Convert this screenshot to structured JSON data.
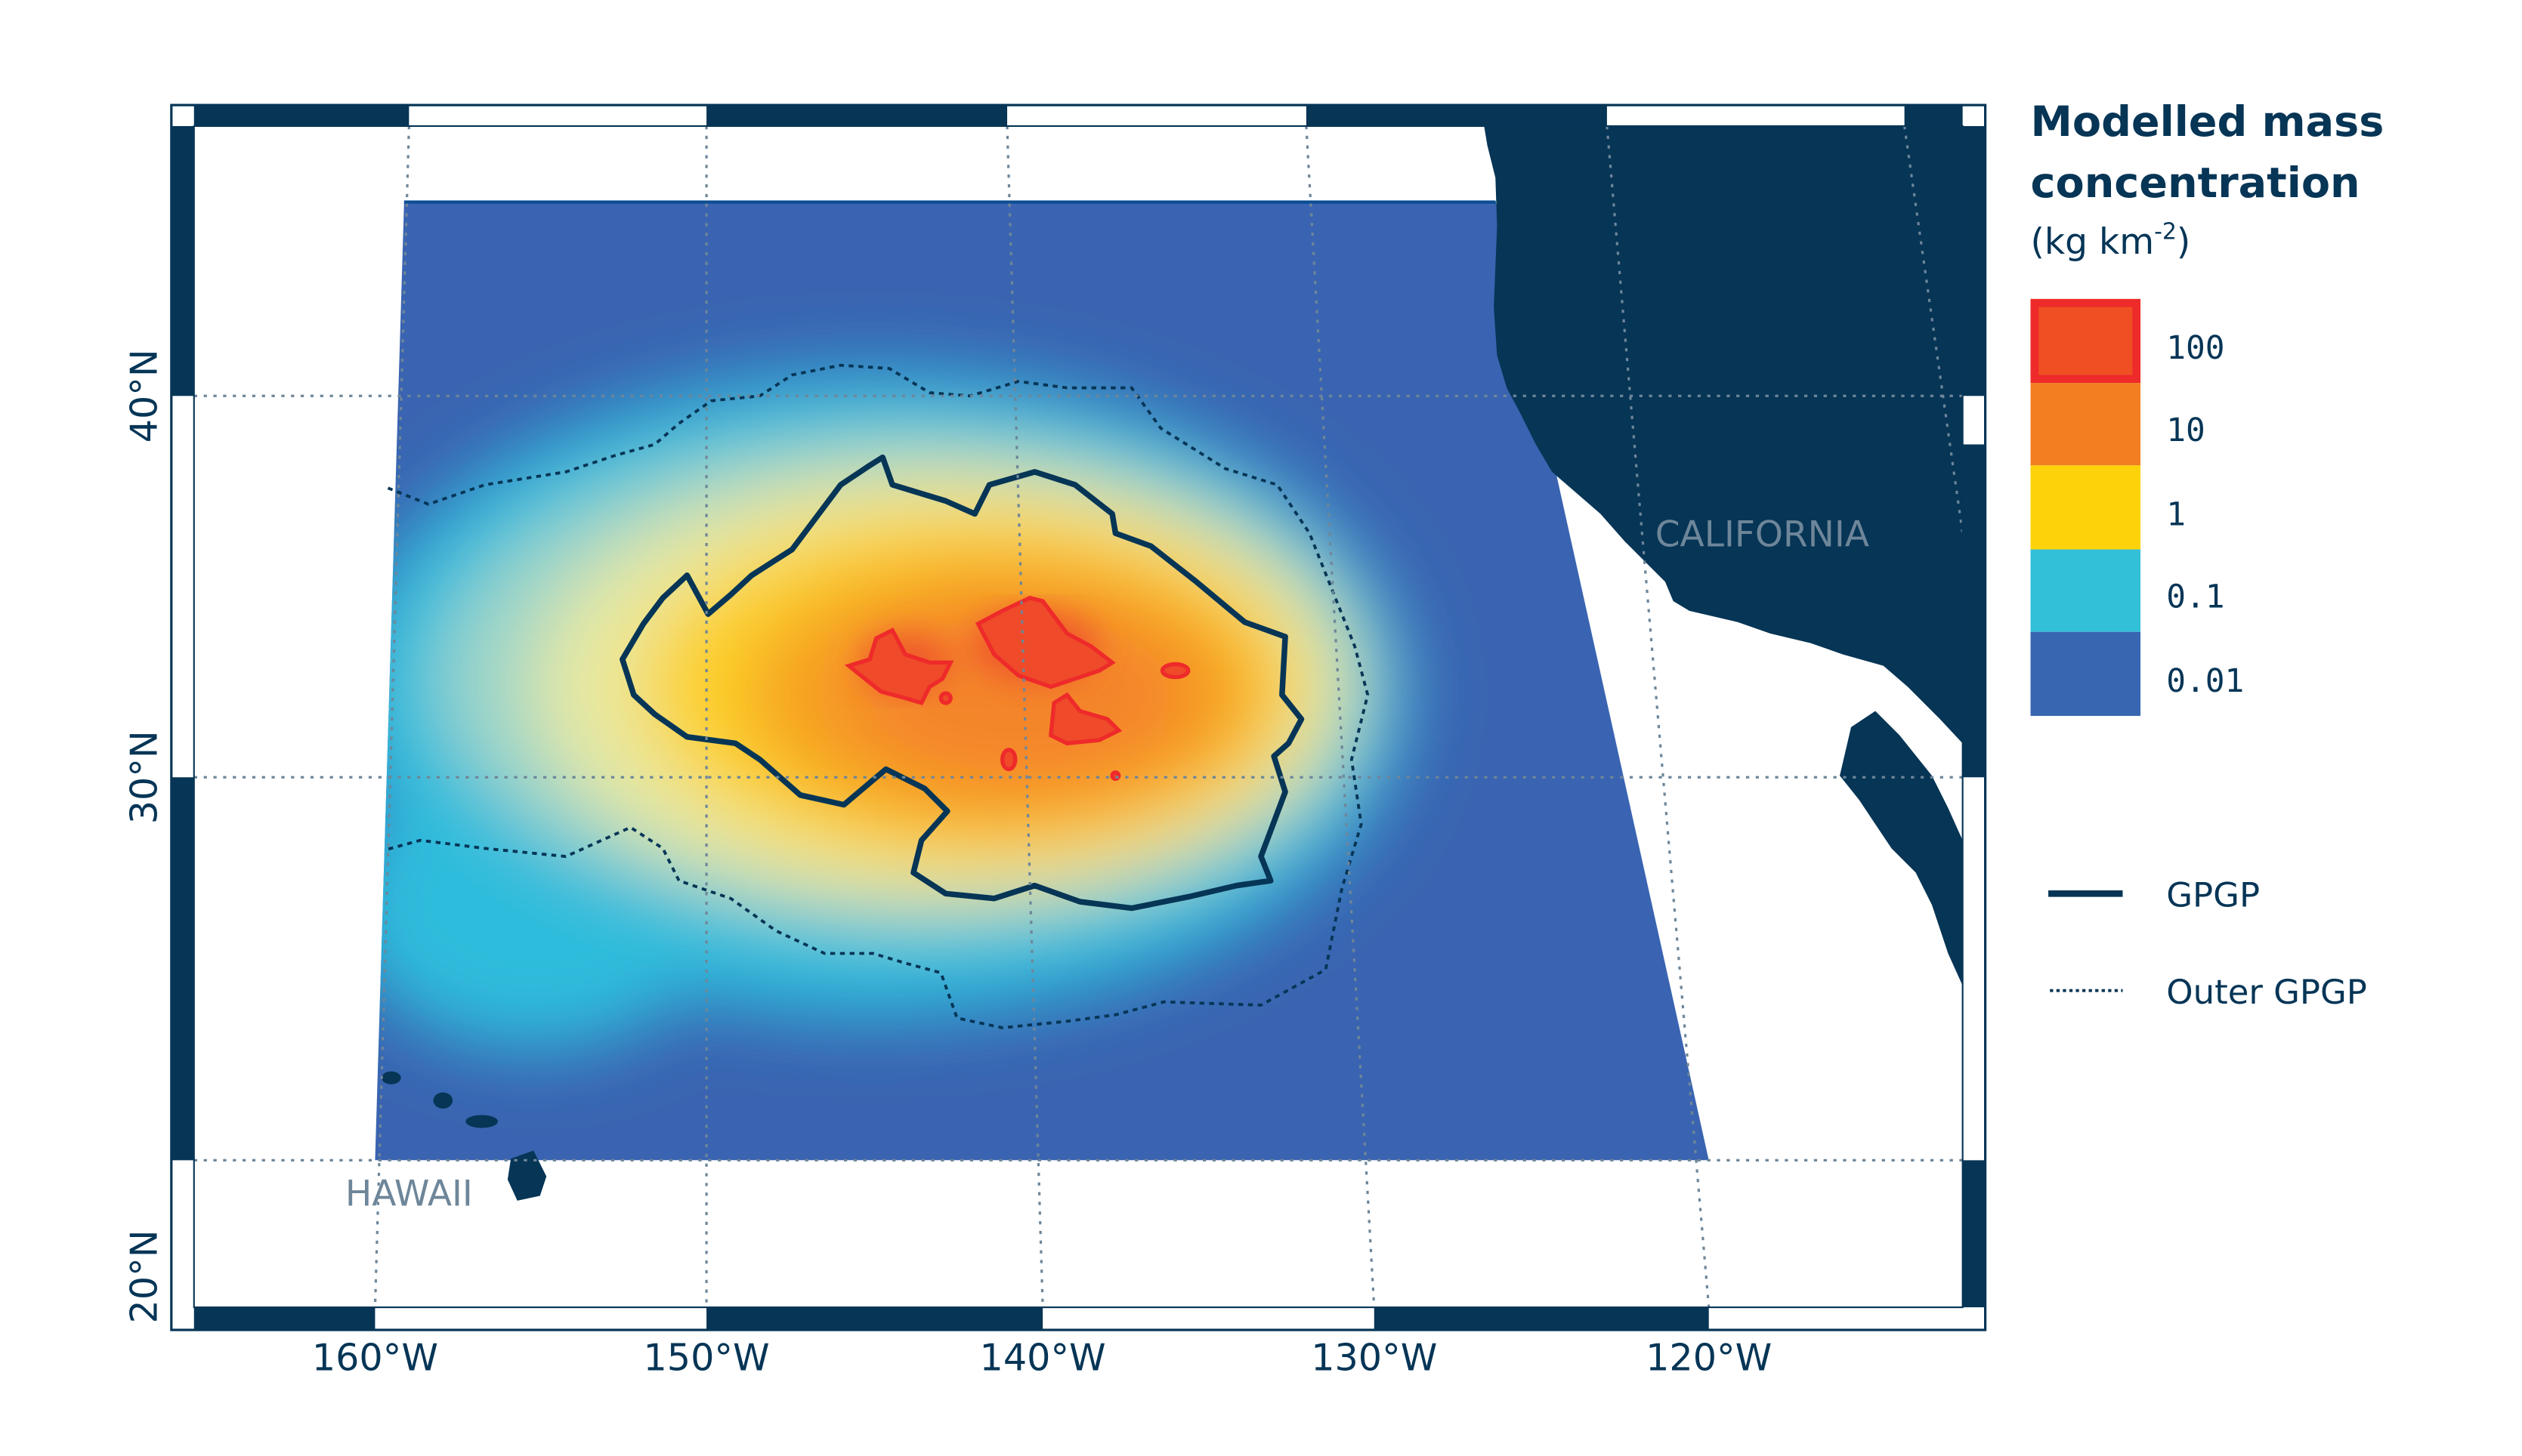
{
  "map": {
    "place_labels": {
      "california": "CALIFORNIA",
      "hawaii": "HAWAII"
    },
    "lon_labels": [
      "160°W",
      "150°W",
      "140°W",
      "130°W",
      "120°W"
    ],
    "lat_labels": [
      "40°N",
      "30°N",
      "20°N"
    ],
    "colors": {
      "land": "#063556",
      "frame": "#063556",
      "low": "#3a64b1",
      "cyan": "#2fbcdc",
      "pale": "#d9e79c",
      "yellow": "#fcd22a",
      "orange": "#f4822a",
      "red": "#ef4a2a",
      "red_outline": "#ee2a2a"
    }
  },
  "legend": {
    "title_line1": "Modelled mass",
    "title_line2": "concentration",
    "unit_prefix": "(kg km",
    "unit_exp": "-2",
    "unit_suffix": ")",
    "classes": [
      {
        "label": "100",
        "color": "#f04e23"
      },
      {
        "label": "10",
        "color": "#f37e21"
      },
      {
        "label": "1",
        "color": "#fdd20a"
      },
      {
        "label": "0.1",
        "color": "#32c0d9"
      },
      {
        "label": "0.01",
        "color": "#3866b0"
      }
    ],
    "lines": [
      {
        "label": "GPGP",
        "style": "solid"
      },
      {
        "label": "Outer GPGP",
        "style": "dotted"
      }
    ]
  }
}
